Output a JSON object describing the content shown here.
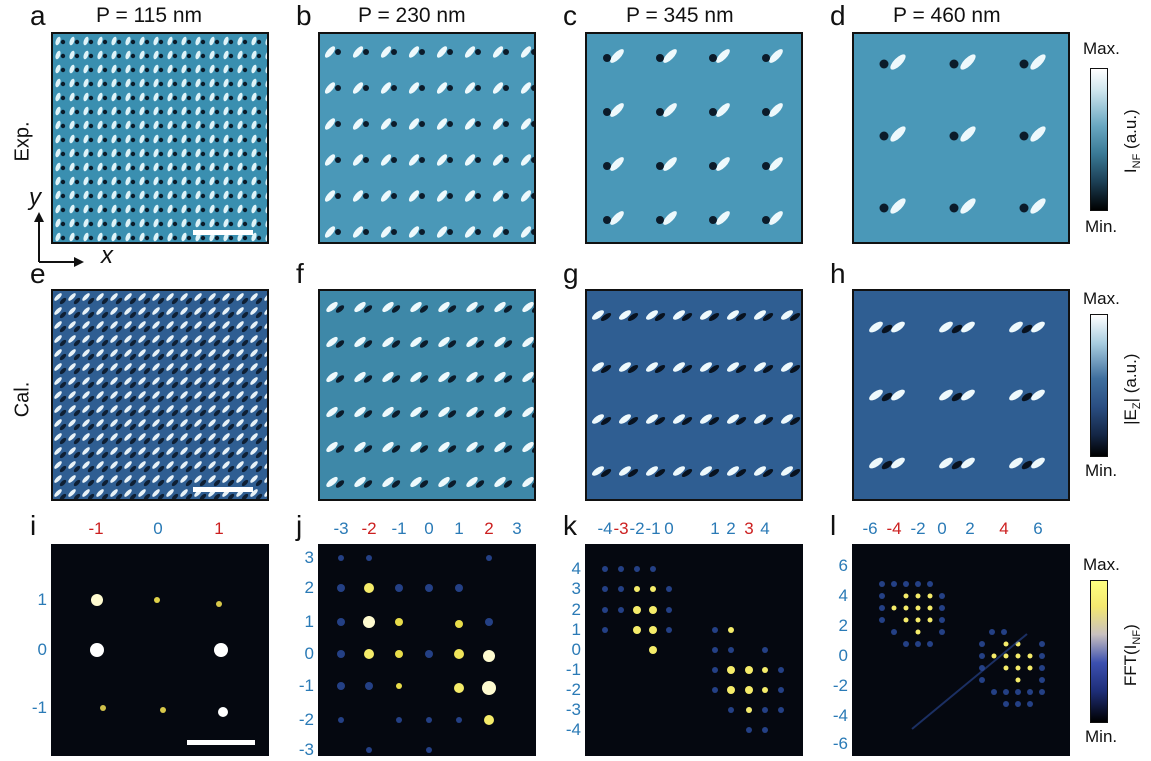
{
  "panel_letters": [
    "a",
    "b",
    "c",
    "d",
    "e",
    "f",
    "g",
    "h",
    "i",
    "j",
    "k",
    "l"
  ],
  "period_titles": [
    "P = 115 nm",
    "P = 230 nm",
    "P = 345 nm",
    "P = 460 nm"
  ],
  "row_labels": {
    "exp": "Exp.",
    "cal": "Cal."
  },
  "axes": {
    "y": "y",
    "x": "x"
  },
  "colorbars": {
    "exp": {
      "max": "Max.",
      "min": "Min.",
      "title": "I_NF (a.u.)"
    },
    "cal": {
      "max": "Max.",
      "min": "Min.",
      "title": "|E_Z| (a.u.)"
    },
    "fft": {
      "max": "Max.",
      "min": "Min.",
      "title": "FFT(I_NF)"
    }
  },
  "colors": {
    "exp_bg": "#3a8fb0",
    "cal_bg": "#2f5e92",
    "fft_bg": "#050810",
    "label_blue": "#2a7ab6",
    "label_red": "#cc1f1f"
  },
  "fft_i": {
    "top": [
      {
        "t": "-1",
        "c": "red"
      },
      {
        "t": "0",
        "c": "blue"
      },
      {
        "t": "1",
        "c": "red"
      }
    ],
    "left": [
      "1",
      "0",
      "-1"
    ]
  },
  "fft_j": {
    "top": [
      {
        "t": "-3",
        "c": "blue"
      },
      {
        "t": "-2",
        "c": "red"
      },
      {
        "t": "-1",
        "c": "blue"
      },
      {
        "t": "0",
        "c": "blue"
      },
      {
        "t": "1",
        "c": "blue"
      },
      {
        "t": "2",
        "c": "red"
      },
      {
        "t": "3",
        "c": "blue"
      }
    ],
    "left": [
      "3",
      "2",
      "1",
      "0",
      "-1",
      "-2",
      "-3"
    ]
  },
  "fft_k": {
    "top": [
      {
        "t": "-4",
        "c": "blue"
      },
      {
        "t": "-3",
        "c": "red"
      },
      {
        "t": "-2",
        "c": "blue"
      },
      {
        "t": "-1",
        "c": "blue"
      },
      {
        "t": "0",
        "c": "blue"
      },
      {
        "t": "1",
        "c": "blue"
      },
      {
        "t": "2",
        "c": "blue"
      },
      {
        "t": "3",
        "c": "red"
      },
      {
        "t": "4",
        "c": "blue"
      }
    ],
    "left": [
      "4",
      "3",
      "2",
      "1",
      "0",
      "-1",
      "-2",
      "-3",
      "-4"
    ]
  },
  "fft_l": {
    "top": [
      {
        "t": "-6",
        "c": "blue"
      },
      {
        "t": "-4",
        "c": "red"
      },
      {
        "t": "-2",
        "c": "blue"
      },
      {
        "t": "0",
        "c": "blue"
      },
      {
        "t": "2",
        "c": "blue"
      },
      {
        "t": "4",
        "c": "red"
      },
      {
        "t": "6",
        "c": "blue"
      }
    ],
    "left": [
      "6",
      "4",
      "2",
      "0",
      "-2",
      "-4",
      "-6"
    ]
  }
}
